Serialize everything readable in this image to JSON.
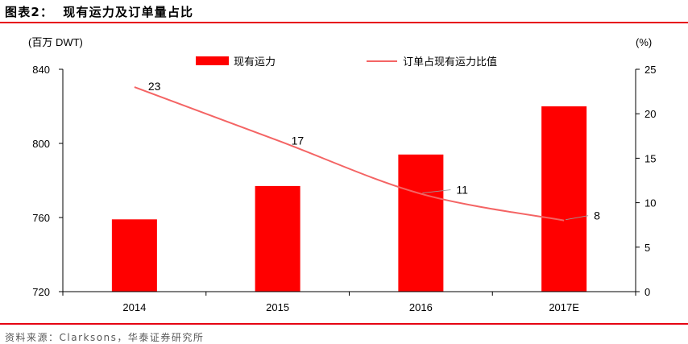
{
  "header": {
    "figure_label": "图表2：",
    "title": "现有运力及订单量占比"
  },
  "source": "资料来源：Clarksons，华泰证券研究所",
  "colors": {
    "accent_rule": "#e60012",
    "bar": "#ff0000",
    "line": "#f46464",
    "axis": "#000000",
    "source_text": "#595959"
  },
  "chart_data": {
    "type": "bar",
    "categories": [
      "2014",
      "2015",
      "2016",
      "2017E"
    ],
    "series": [
      {
        "name": "现有运力",
        "type": "bar",
        "axis": "left",
        "values": [
          759,
          777,
          794,
          820
        ]
      },
      {
        "name": "订单占现有运力比值",
        "type": "line",
        "axis": "right",
        "values": [
          23,
          17,
          11,
          8
        ]
      }
    ],
    "y_left": {
      "label": "(百万 DWT)",
      "ticks": [
        840,
        800,
        760,
        720
      ],
      "range": [
        720,
        840
      ]
    },
    "y_right": {
      "label": "(%)",
      "ticks": [
        25,
        20,
        15,
        10,
        5,
        0
      ],
      "range": [
        0,
        25
      ]
    },
    "grid": false,
    "legend_position": "top"
  }
}
